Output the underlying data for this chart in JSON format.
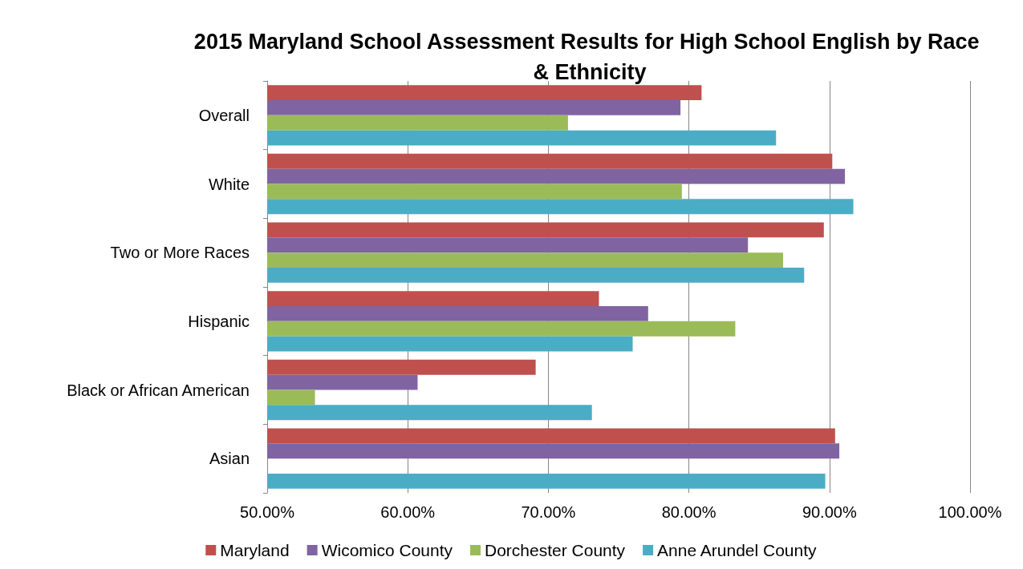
{
  "chart_data": {
    "type": "bar",
    "orientation": "horizontal",
    "title": "2015 Maryland School Assessment Results for High School English by Race & Ethnicity",
    "categories": [
      "Overall",
      "White",
      "Two or More Races",
      "Hispanic",
      "Black or African American",
      "Asian"
    ],
    "series": [
      {
        "name": "Maryland",
        "color": "#c0504d",
        "values": [
          80.9,
          90.2,
          89.6,
          73.6,
          69.1,
          90.4
        ]
      },
      {
        "name": "Wicomico County",
        "color": "#8064a2",
        "values": [
          79.4,
          91.1,
          84.2,
          77.1,
          60.7,
          90.7
        ]
      },
      {
        "name": "Dorchester County",
        "color": "#9bbb59",
        "values": [
          71.4,
          79.5,
          86.7,
          83.3,
          53.4,
          null
        ]
      },
      {
        "name": "Anne Arundel County",
        "color": "#4bacc6",
        "values": [
          86.2,
          91.7,
          88.2,
          76.0,
          73.1,
          89.7
        ]
      }
    ],
    "xlim": [
      50,
      100
    ],
    "xticks": [
      {
        "value": 50,
        "label": "50.00%"
      },
      {
        "value": 60,
        "label": "60.00%"
      },
      {
        "value": 70,
        "label": "70.00%"
      },
      {
        "value": 80,
        "label": "80.00%"
      },
      {
        "value": 90,
        "label": "90.00%"
      },
      {
        "value": 100,
        "label": "100.00%"
      }
    ],
    "grid": "x",
    "legend": "bottom"
  }
}
